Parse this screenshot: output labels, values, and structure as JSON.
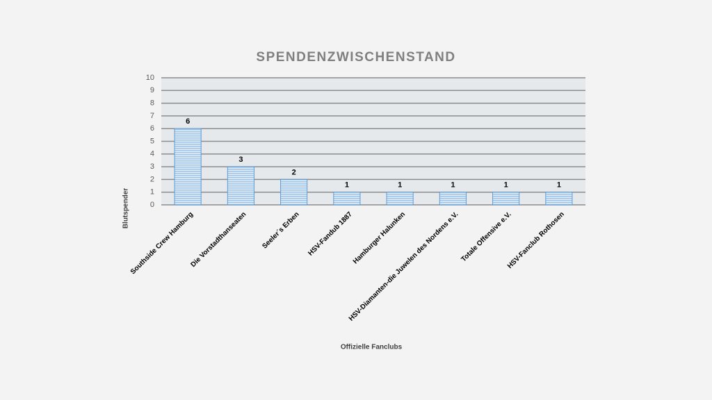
{
  "chart_data": {
    "type": "bar",
    "title": "SPENDENZWISCHENSTAND",
    "x_label": "Offizielle Fanclubs",
    "y_label": "Blutspender",
    "categories": [
      "Southside Crew Hamburg",
      "Die Vorstadthanseaten",
      "Seeler´s Erben",
      "HSV-Fandub 1887",
      "Hamburger Halunken",
      "HSV-Diamanten-die Juwelen des Nordens e.V.",
      "Totale Offensive e.V.",
      "HSV-Fanclub Rothosen"
    ],
    "values": [
      6,
      3,
      2,
      1,
      1,
      1,
      1,
      1
    ],
    "color": "#9dc3e6",
    "edge_color": "#5b9bd5",
    "ylim": [
      0,
      10
    ],
    "yticks": [
      0,
      1,
      2,
      3,
      4,
      5,
      6,
      7,
      8,
      9,
      10
    ],
    "grid": true
  }
}
